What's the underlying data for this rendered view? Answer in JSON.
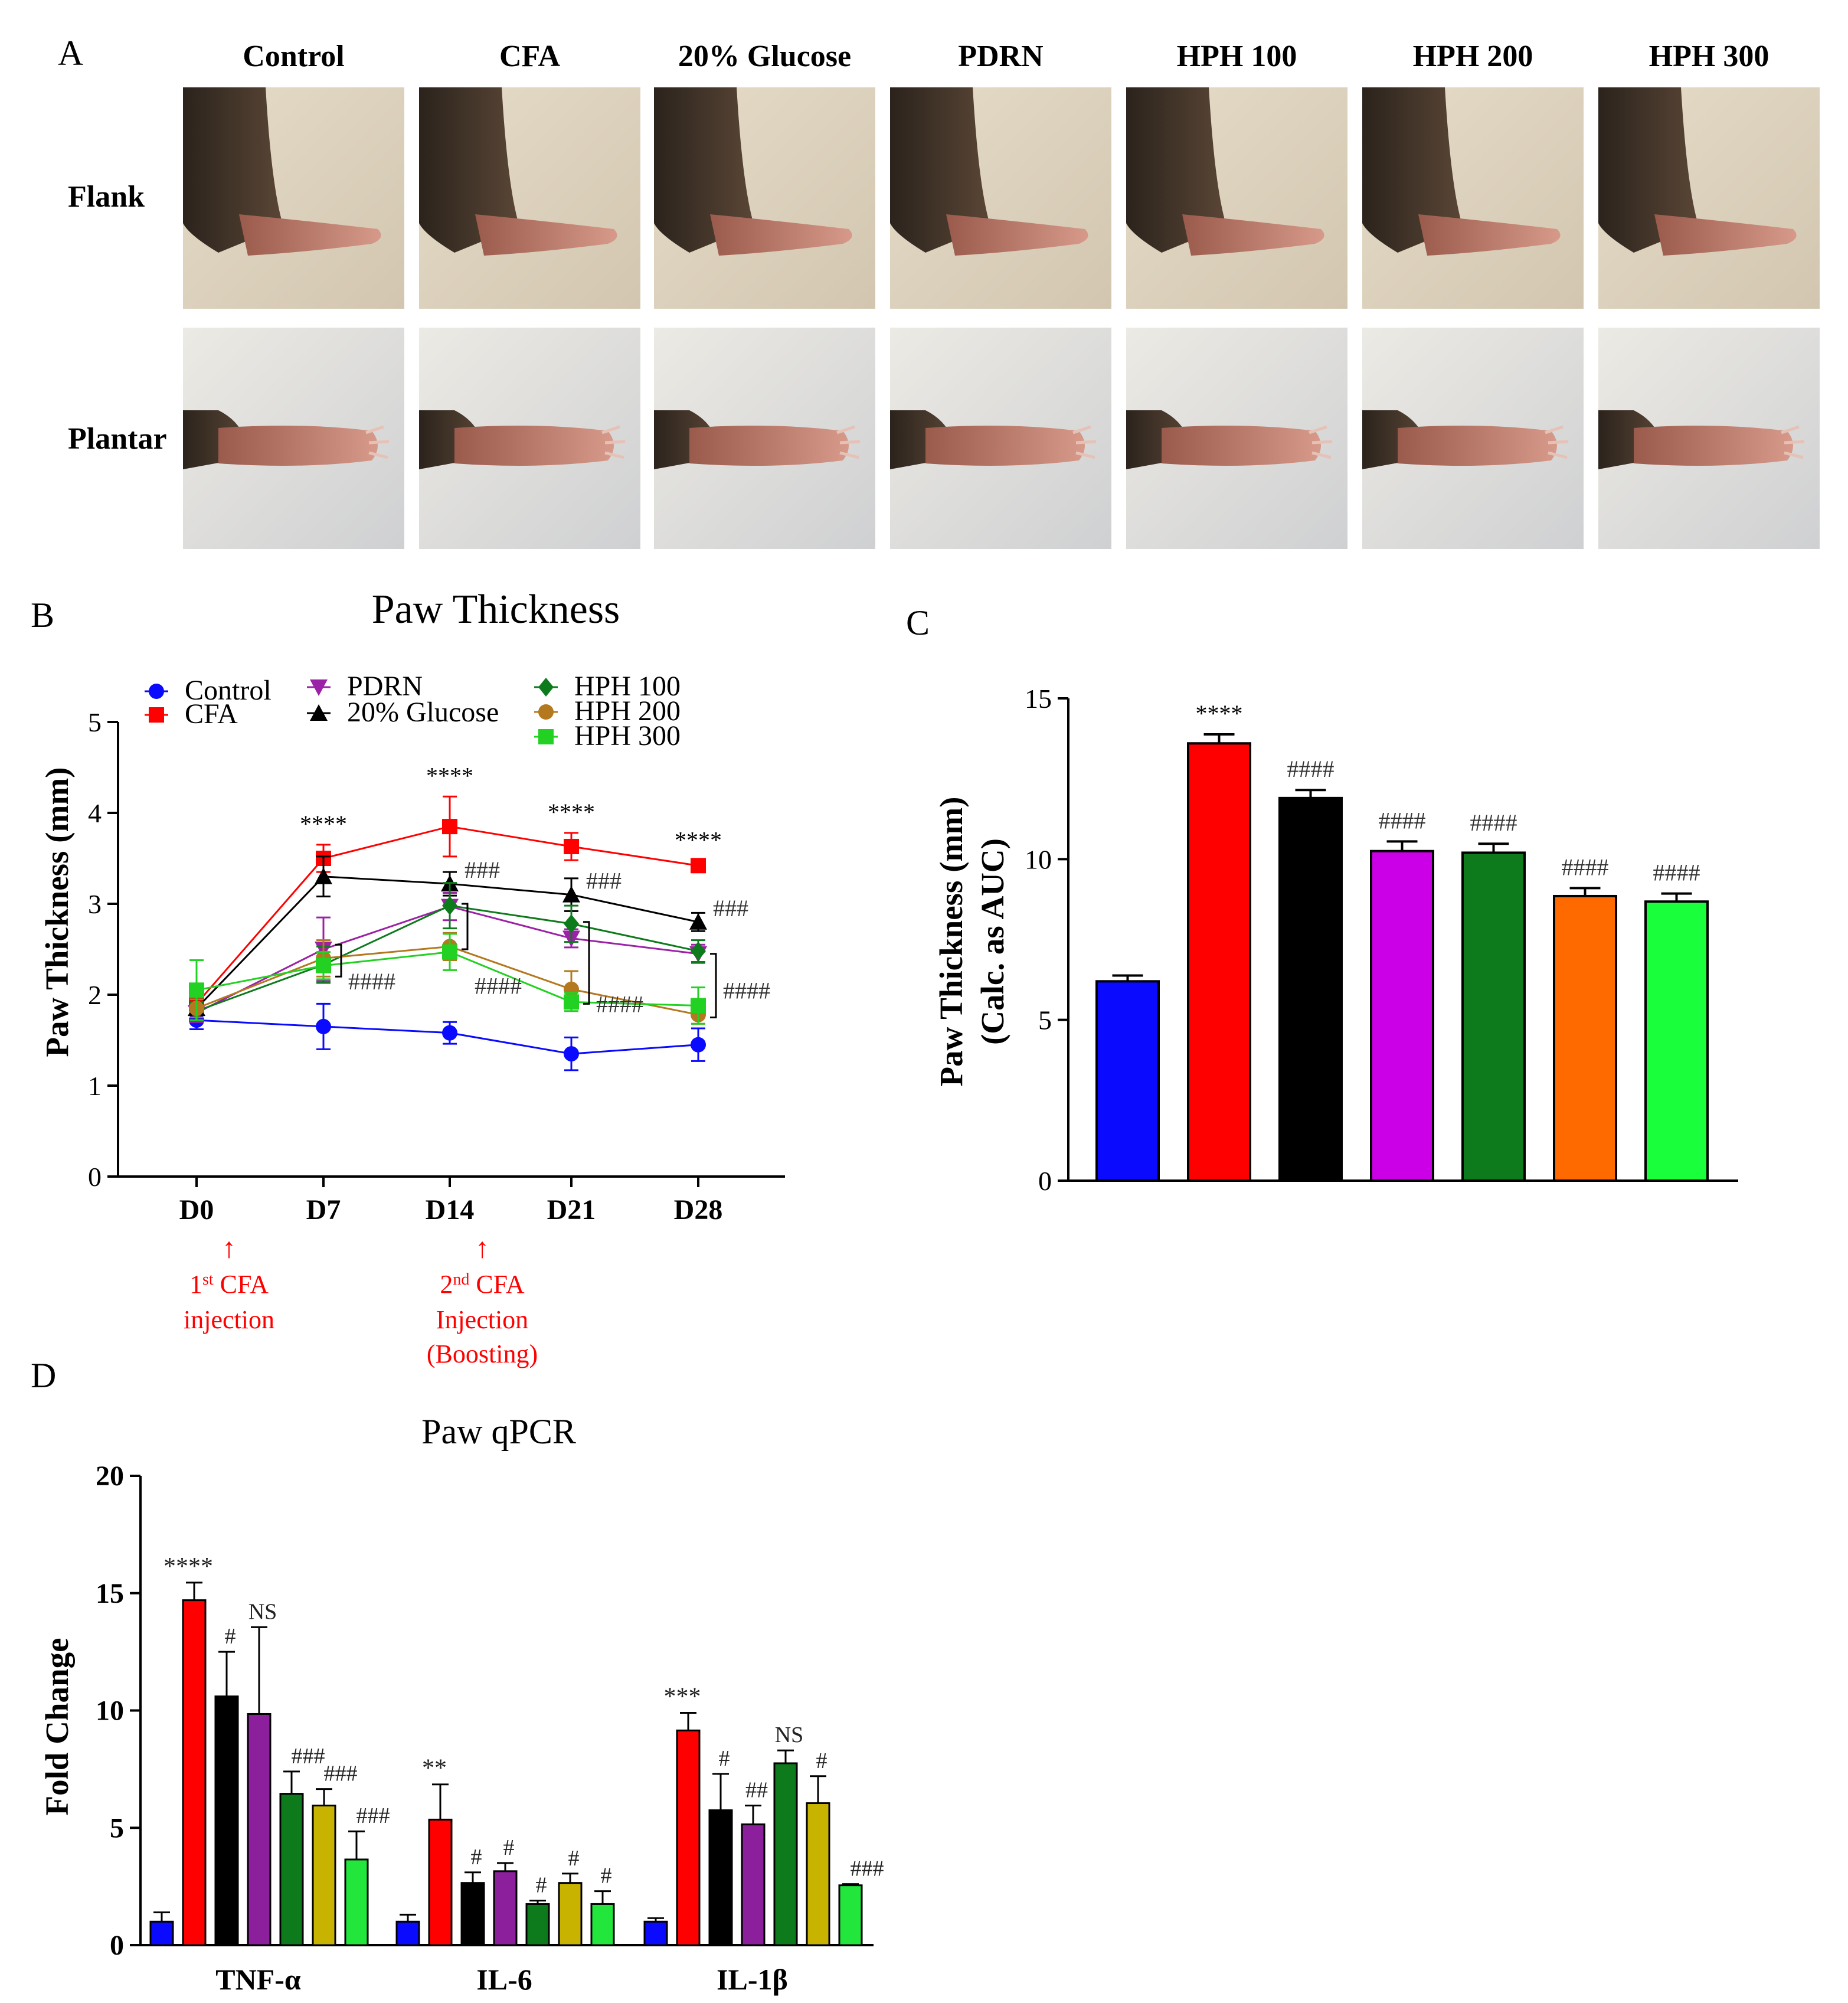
{
  "figure": {
    "panel_a": {
      "label": "A",
      "columns": [
        "Control",
        "CFA",
        "20% Glucose",
        "PDRN",
        "HPH 100",
        "HPH 200",
        "HPH 300"
      ],
      "rows": [
        "Flank",
        "Plantar"
      ]
    },
    "colors": {
      "Control": "#0a0aff",
      "CFA": "#ff0000",
      "20% Glucose": "#000000",
      "PDRN": "#9b21a6",
      "HPH 100": "#0d7a1c",
      "HPH 200": "#b4781e",
      "HPH 300": "#22d122",
      "annotation_red": "#ff0000"
    }
  },
  "chart_data": [
    {
      "panel": "B",
      "type": "line",
      "title": "Paw Thickness",
      "xlabel": "",
      "ylabel": "Paw Thickness (mm)",
      "categories": [
        "D0",
        "D7",
        "D14",
        "D21",
        "D28"
      ],
      "ylim": [
        0,
        5
      ],
      "yticks": [
        "0",
        "1",
        "2",
        "3",
        "4",
        "5"
      ],
      "legend": "top-left",
      "series": [
        {
          "name": "Control",
          "marker": "circle",
          "values": [
            1.72,
            1.65,
            1.58,
            1.35,
            1.45
          ],
          "errors": [
            0.1,
            0.25,
            0.12,
            0.18,
            0.18
          ]
        },
        {
          "name": "CFA",
          "marker": "square",
          "values": [
            1.9,
            3.5,
            3.85,
            3.63,
            3.42
          ],
          "errors": [
            0.1,
            0.15,
            0.33,
            0.15,
            0.05
          ]
        },
        {
          "name": "PDRN",
          "marker": "triangle-down",
          "values": [
            1.8,
            2.5,
            2.97,
            2.62,
            2.45
          ],
          "errors": [
            0.1,
            0.35,
            0.15,
            0.1,
            0.1
          ]
        },
        {
          "name": "20% Glucose",
          "marker": "triangle-up",
          "values": [
            1.85,
            3.3,
            3.22,
            3.1,
            2.8
          ],
          "errors": [
            0.1,
            0.22,
            0.13,
            0.18,
            0.1
          ]
        },
        {
          "name": "HPH 100",
          "marker": "diamond",
          "values": [
            1.82,
            2.33,
            2.98,
            2.78,
            2.48
          ],
          "errors": [
            0.1,
            0.2,
            0.25,
            0.2,
            0.12
          ]
        },
        {
          "name": "HPH 200",
          "marker": "circle",
          "values": [
            1.85,
            2.4,
            2.53,
            2.06,
            1.78
          ],
          "errors": [
            0.1,
            0.2,
            0.15,
            0.2,
            0.1
          ]
        },
        {
          "name": "HPH 300",
          "marker": "square",
          "values": [
            2.05,
            2.32,
            2.47,
            1.92,
            1.88
          ],
          "errors": [
            0.33,
            0.15,
            0.2,
            0.1,
            0.2
          ]
        }
      ],
      "annotations": {
        "cfa_stars": [
          {
            "x": "D7",
            "text": "****"
          },
          {
            "x": "D14",
            "text": "****"
          },
          {
            "x": "D21",
            "text": "****"
          },
          {
            "x": "D28",
            "text": "****"
          }
        ],
        "glucose_hashes": [
          {
            "x": "D14",
            "text": "###"
          },
          {
            "x": "D21",
            "text": "###"
          },
          {
            "x": "D28",
            "text": "###"
          }
        ],
        "bracket_hashes": [
          {
            "x": "D7",
            "text": "####"
          },
          {
            "x": "D14",
            "text": "####"
          },
          {
            "x": "D21",
            "text": "####"
          },
          {
            "x": "D28",
            "text": "####"
          }
        ],
        "injection_1": {
          "x": "D0",
          "arrow": "↑",
          "line1": "1",
          "sup": "st",
          "line1b": " CFA",
          "line2": "injection"
        },
        "injection_2": {
          "x": "D14",
          "arrow": "↑",
          "line1": "2",
          "sup": "nd",
          "line1b": " CFA",
          "line2": "Injection",
          "line3": "(Boosting)"
        }
      }
    },
    {
      "panel": "C",
      "type": "bar",
      "title": "",
      "ylabel": "Paw Thickness (mm)",
      "ylabel2": "(Calc. as AUC)",
      "ylim": [
        0,
        15
      ],
      "yticks": [
        "0",
        "5",
        "10",
        "15"
      ],
      "values": [
        6.2,
        13.6,
        11.9,
        10.25,
        10.2,
        8.85,
        8.68
      ],
      "errors": [
        0.18,
        0.28,
        0.25,
        0.3,
        0.28,
        0.25,
        0.25
      ],
      "colors": [
        "#0a0aff",
        "#ff0000",
        "#000000",
        "#cc00e6",
        "#0d7a1c",
        "#ff6a00",
        "#1aff3c"
      ],
      "labels": [
        "",
        "****",
        "####",
        "####",
        "####",
        "####",
        "####"
      ]
    },
    {
      "panel": "D",
      "type": "bar",
      "title": "Paw qPCR",
      "ylabel": "Fold Change",
      "ylim": [
        0,
        20
      ],
      "yticks": [
        "0",
        "5",
        "10",
        "15",
        "20"
      ],
      "categories": [
        "TNF-α",
        "IL-6",
        "IL-1β"
      ],
      "colors": [
        "#0a0aff",
        "#ff0000",
        "#000000",
        "#8b1f9c",
        "#0d7a1c",
        "#c8b400",
        "#22e63c"
      ],
      "series": [
        {
          "name": "Control",
          "values": [
            1.0,
            1.0,
            1.0
          ],
          "errors": [
            0.4,
            0.3,
            0.15
          ],
          "labels": [
            "",
            "",
            ""
          ]
        },
        {
          "name": "CFA",
          "values": [
            14.7,
            5.35,
            9.15
          ],
          "errors": [
            0.75,
            1.5,
            0.75
          ],
          "labels": [
            "****",
            "**",
            "***"
          ]
        },
        {
          "name": "20% Glucose",
          "values": [
            10.6,
            2.65,
            5.75
          ],
          "errors": [
            1.9,
            0.45,
            1.55
          ],
          "labels": [
            "#",
            "#",
            "#"
          ]
        },
        {
          "name": "PDRN",
          "values": [
            9.85,
            3.15,
            5.15
          ],
          "errors": [
            3.7,
            0.35,
            0.8
          ],
          "labels": [
            "NS",
            "#",
            "##"
          ]
        },
        {
          "name": "HPH 100",
          "values": [
            6.45,
            1.75,
            7.75
          ],
          "errors": [
            0.95,
            0.15,
            0.55
          ],
          "labels": [
            "###",
            "#",
            "NS"
          ]
        },
        {
          "name": "HPH 200",
          "values": [
            5.95,
            2.65,
            6.05
          ],
          "errors": [
            0.7,
            0.4,
            1.15
          ],
          "labels": [
            "###",
            "#",
            "#"
          ]
        },
        {
          "name": "HPH 300",
          "values": [
            3.65,
            1.75,
            2.55
          ],
          "errors": [
            1.2,
            0.55,
            0.05
          ],
          "labels": [
            "###",
            "#",
            "###"
          ]
        }
      ]
    }
  ]
}
